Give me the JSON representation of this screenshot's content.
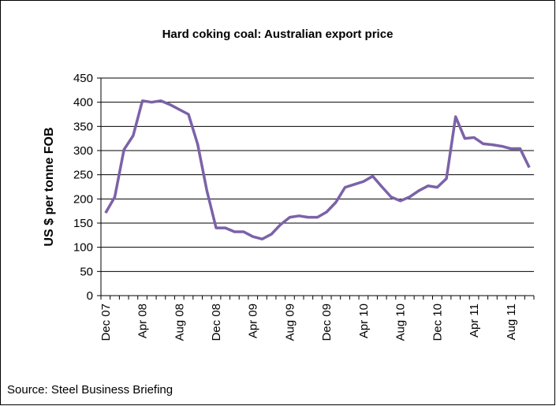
{
  "chart_data": {
    "type": "line",
    "title": "Hard coking coal: Australian export price",
    "y_label": "US $ per tonne FOB",
    "source": "Source: Steel Business Briefing",
    "categories": [
      "Dec 07",
      null,
      null,
      null,
      "Apr 08",
      null,
      null,
      null,
      "Aug 08",
      null,
      null,
      null,
      "Dec 08",
      null,
      null,
      null,
      "Apr 09",
      null,
      null,
      null,
      "Aug 09",
      null,
      null,
      null,
      "Dec 09",
      null,
      null,
      null,
      "Apr 10",
      null,
      null,
      null,
      "Aug 10",
      null,
      null,
      null,
      "Dec 10",
      null,
      null,
      null,
      "Apr 11",
      null,
      null,
      null,
      "Aug 11",
      null,
      null
    ],
    "series": [
      {
        "name": "Hard coking coal",
        "color": "#7b62a8",
        "values": [
          171,
          204,
          302,
          331,
          403,
          400,
          403,
          395,
          385,
          375,
          313,
          217,
          140,
          140,
          132,
          132,
          122,
          117,
          127,
          147,
          162,
          165,
          162,
          162,
          173,
          193,
          224,
          230,
          236,
          247,
          225,
          204,
          196,
          204,
          217,
          227,
          224,
          242,
          370,
          325,
          327,
          314,
          312,
          309,
          304,
          304,
          265
        ]
      }
    ],
    "ylim": [
      0,
      450
    ],
    "yticks": [
      0,
      50,
      100,
      150,
      200,
      250,
      300,
      350,
      400,
      450
    ],
    "grid": true
  }
}
